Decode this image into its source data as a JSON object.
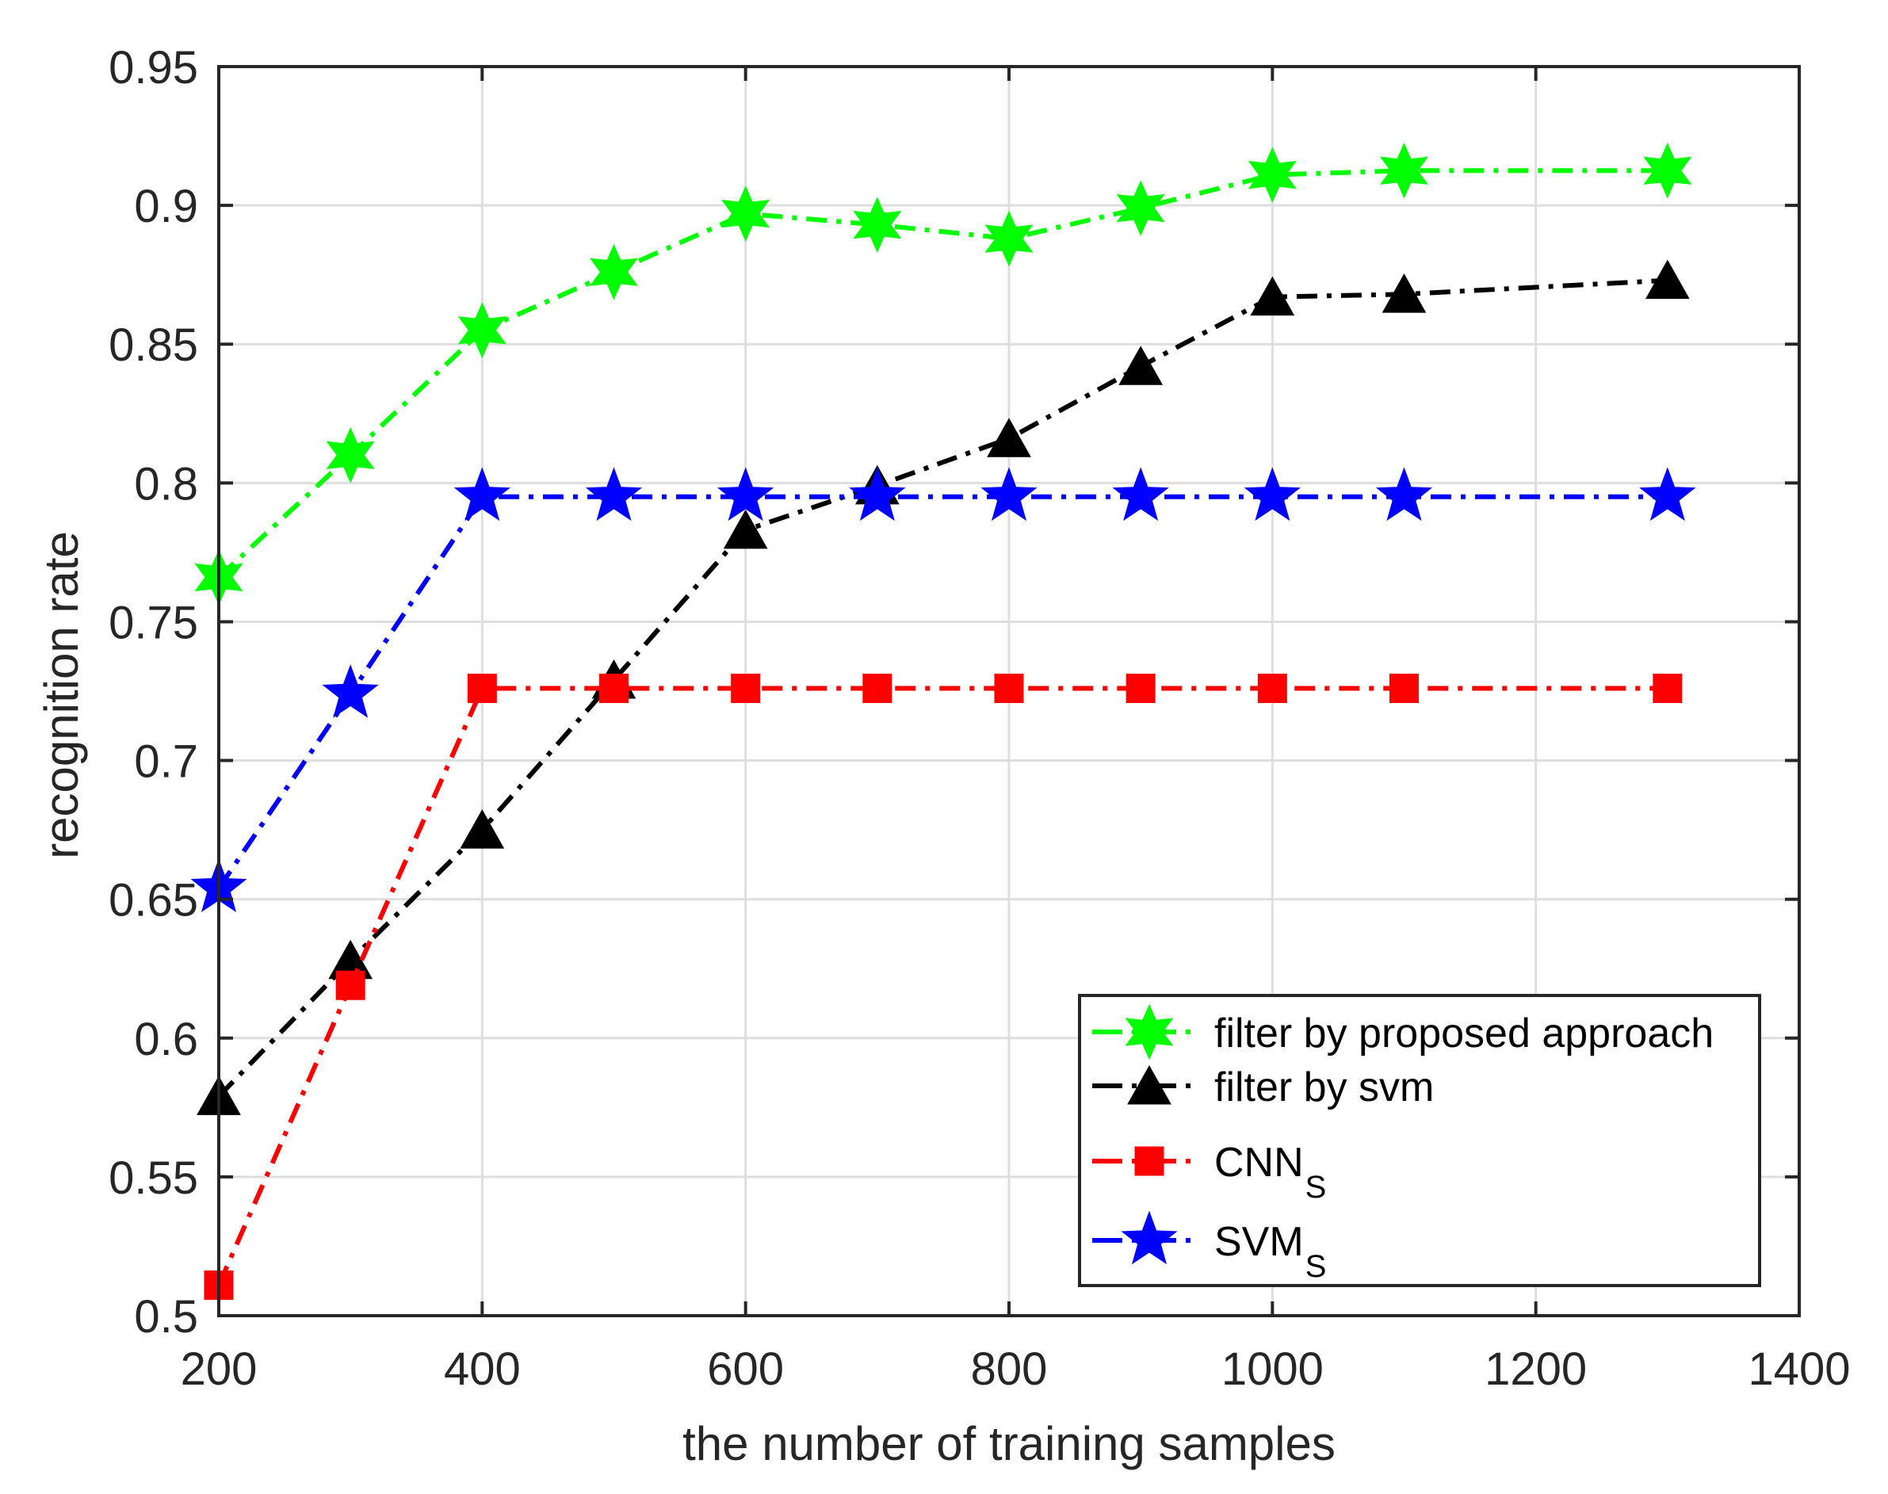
{
  "chart_data": {
    "type": "line",
    "title": "",
    "xlabel": "the number of training samples",
    "ylabel": "recognition rate",
    "xlim": [
      200,
      1400
    ],
    "ylim": [
      0.5,
      0.95
    ],
    "xticks": [
      200,
      400,
      600,
      800,
      1000,
      1200,
      1400
    ],
    "xtick_labels": [
      "200",
      "400",
      "600",
      "800",
      "1000",
      "1200",
      "1400"
    ],
    "yticks": [
      0.5,
      0.55,
      0.6,
      0.65,
      0.7,
      0.75,
      0.8,
      0.85,
      0.9,
      0.95
    ],
    "ytick_labels": [
      "0.5",
      "0.55",
      "0.6",
      "0.65",
      "0.7",
      "0.75",
      "0.8",
      "0.85",
      "0.9",
      "0.95"
    ],
    "grid": true,
    "legend_position": "lower right",
    "x": [
      200,
      300,
      400,
      500,
      600,
      700,
      800,
      900,
      1000,
      1100,
      1300
    ],
    "series": [
      {
        "name": "filter by proposed approach",
        "legend_main": "filter by proposed approach",
        "legend_sub": "",
        "color": "#00ff00",
        "marker": "hexagram",
        "line_style": "dash-dot",
        "values": [
          0.766,
          0.81,
          0.855,
          0.876,
          0.897,
          0.893,
          0.888,
          0.899,
          0.911,
          0.9125,
          0.9125
        ]
      },
      {
        "name": "filter by svm",
        "legend_main": "filter by svm",
        "legend_sub": "",
        "color": "#000000",
        "marker": "triangle-up",
        "line_style": "dash-dot",
        "values": [
          0.579,
          0.628,
          0.675,
          0.729,
          0.783,
          0.799,
          0.816,
          0.842,
          0.867,
          0.868,
          0.873
        ]
      },
      {
        "name": "CNN_S",
        "legend_main": "CNN",
        "legend_sub": "S",
        "color": "#ff0000",
        "marker": "square",
        "line_style": "dash-dot",
        "values": [
          0.511,
          0.619,
          0.726,
          0.726,
          0.726,
          0.726,
          0.726,
          0.726,
          0.726,
          0.726,
          0.726
        ]
      },
      {
        "name": "SVM_S",
        "legend_main": "SVM",
        "legend_sub": "S",
        "color": "#0000ff",
        "marker": "pentagram",
        "line_style": "dash-dot",
        "values": [
          0.654,
          0.724,
          0.795,
          0.795,
          0.795,
          0.795,
          0.795,
          0.795,
          0.795,
          0.795,
          0.795
        ]
      }
    ]
  },
  "style": {
    "axis_color": "#262626",
    "grid_color": "#dedede",
    "background": "#ffffff"
  }
}
